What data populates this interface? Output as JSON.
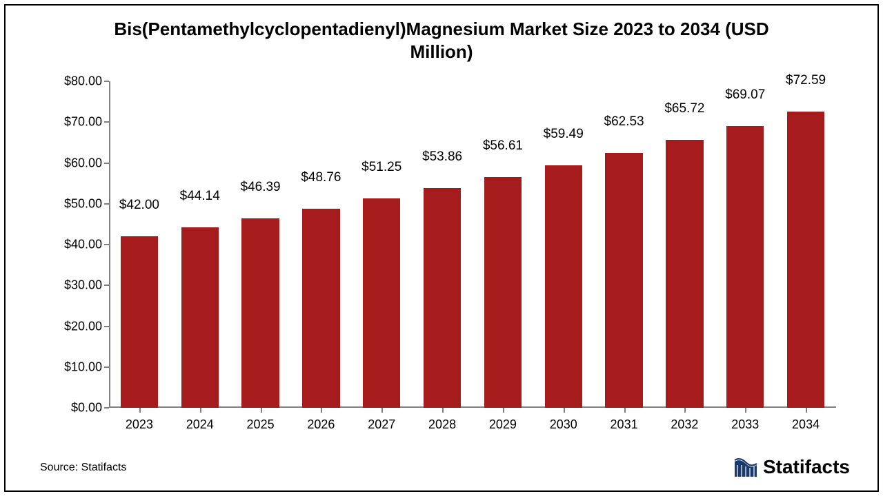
{
  "chart": {
    "type": "bar",
    "title": "Bis(Pentamethylcyclopentadienyl)Magnesium Market Size 2023 to 2034 (USD Million)",
    "title_fontsize": 26,
    "title_color": "#000000",
    "background_color": "#ffffff",
    "border_color": "#000000",
    "axis_color": "#808080",
    "categories": [
      "2023",
      "2024",
      "2025",
      "2026",
      "2027",
      "2028",
      "2029",
      "2030",
      "2031",
      "2032",
      "2033",
      "2034"
    ],
    "values": [
      42.0,
      44.14,
      46.39,
      48.76,
      51.25,
      53.86,
      56.61,
      59.49,
      62.53,
      65.72,
      69.07,
      72.59
    ],
    "value_labels": [
      "$42.00",
      "$44.14",
      "$46.39",
      "$48.76",
      "$51.25",
      "$53.86",
      "$56.61",
      "$59.49",
      "$62.53",
      "$65.72",
      "$69.07",
      "$72.59"
    ],
    "bar_color": "#a61c1c",
    "bar_width_ratio": 0.62,
    "ylim": [
      0,
      80
    ],
    "ytick_step": 10,
    "ytick_labels": [
      "$0.00",
      "$10.00",
      "$20.00",
      "$30.00",
      "$40.00",
      "$50.00",
      "$60.00",
      "$70.00",
      "$80.00"
    ],
    "tick_fontsize": 18,
    "value_label_fontsize": 19,
    "xtick_fontsize": 18,
    "tick_color": "#000000"
  },
  "footer": {
    "source": "Source: Statifacts",
    "source_fontsize": 16,
    "brand": "Statifacts",
    "brand_fontsize": 28,
    "brand_icon_color": "#1a3a6e"
  }
}
